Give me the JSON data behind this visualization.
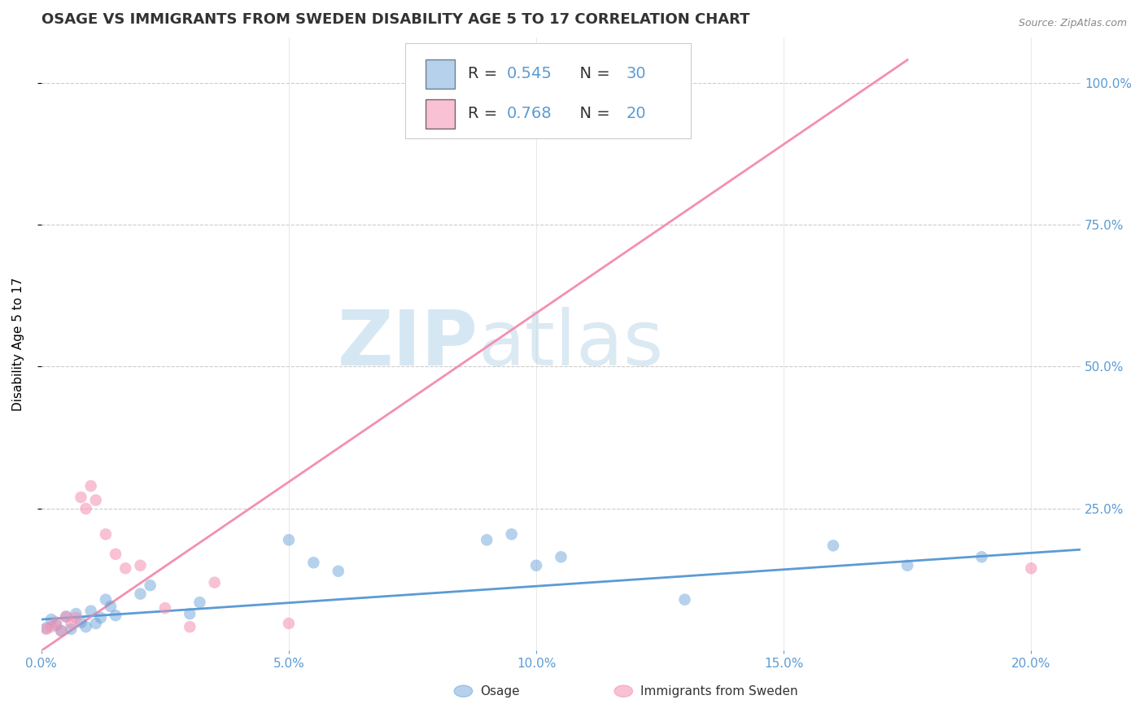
{
  "title": "OSAGE VS IMMIGRANTS FROM SWEDEN DISABILITY AGE 5 TO 17 CORRELATION CHART",
  "source": "Source: ZipAtlas.com",
  "ylabel": "Disability Age 5 to 17",
  "xlim": [
    0.0,
    0.21
  ],
  "ylim": [
    0.0,
    1.08
  ],
  "xtick_labels": [
    "0.0%",
    "5.0%",
    "10.0%",
    "15.0%",
    "20.0%"
  ],
  "xtick_values": [
    0.0,
    0.05,
    0.1,
    0.15,
    0.2
  ],
  "ytick_labels": [
    "25.0%",
    "50.0%",
    "75.0%",
    "100.0%"
  ],
  "ytick_values": [
    0.25,
    0.5,
    0.75,
    1.0
  ],
  "blue_color": "#5b9bd5",
  "pink_color": "#f48fb1",
  "blue_scatter": [
    [
      0.001,
      0.04
    ],
    [
      0.002,
      0.055
    ],
    [
      0.003,
      0.045
    ],
    [
      0.004,
      0.035
    ],
    [
      0.005,
      0.06
    ],
    [
      0.006,
      0.038
    ],
    [
      0.007,
      0.065
    ],
    [
      0.008,
      0.05
    ],
    [
      0.009,
      0.042
    ],
    [
      0.01,
      0.07
    ],
    [
      0.011,
      0.048
    ],
    [
      0.012,
      0.058
    ],
    [
      0.013,
      0.09
    ],
    [
      0.014,
      0.078
    ],
    [
      0.015,
      0.062
    ],
    [
      0.02,
      0.1
    ],
    [
      0.022,
      0.115
    ],
    [
      0.03,
      0.065
    ],
    [
      0.032,
      0.085
    ],
    [
      0.05,
      0.195
    ],
    [
      0.055,
      0.155
    ],
    [
      0.06,
      0.14
    ],
    [
      0.09,
      0.195
    ],
    [
      0.095,
      0.205
    ],
    [
      0.1,
      0.15
    ],
    [
      0.105,
      0.165
    ],
    [
      0.13,
      0.09
    ],
    [
      0.16,
      0.185
    ],
    [
      0.175,
      0.15
    ],
    [
      0.19,
      0.165
    ]
  ],
  "pink_scatter": [
    [
      0.001,
      0.038
    ],
    [
      0.002,
      0.042
    ],
    [
      0.003,
      0.05
    ],
    [
      0.004,
      0.035
    ],
    [
      0.005,
      0.06
    ],
    [
      0.006,
      0.048
    ],
    [
      0.007,
      0.058
    ],
    [
      0.008,
      0.27
    ],
    [
      0.009,
      0.25
    ],
    [
      0.01,
      0.29
    ],
    [
      0.011,
      0.265
    ],
    [
      0.013,
      0.205
    ],
    [
      0.015,
      0.17
    ],
    [
      0.017,
      0.145
    ],
    [
      0.02,
      0.15
    ],
    [
      0.025,
      0.075
    ],
    [
      0.03,
      0.042
    ],
    [
      0.035,
      0.12
    ],
    [
      0.05,
      0.048
    ],
    [
      0.2,
      0.145
    ]
  ],
  "blue_line_x": [
    0.0,
    0.21
  ],
  "blue_line_y": [
    0.055,
    0.178
  ],
  "pink_line_x": [
    0.0,
    0.175
  ],
  "pink_line_y": [
    0.0,
    1.04
  ],
  "watermark_zip": "ZIP",
  "watermark_atlas": "atlas",
  "background_color": "#ffffff",
  "grid_color": "#cccccc",
  "title_color": "#333333",
  "axis_label_color": "#5b9bd5",
  "title_fontsize": 13,
  "label_fontsize": 11
}
